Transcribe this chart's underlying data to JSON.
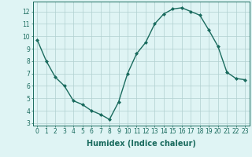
{
  "x": [
    0,
    1,
    2,
    3,
    4,
    5,
    6,
    7,
    8,
    9,
    10,
    11,
    12,
    13,
    14,
    15,
    16,
    17,
    18,
    19,
    20,
    21,
    22,
    23
  ],
  "y": [
    9.7,
    8.0,
    6.7,
    6.0,
    4.8,
    4.5,
    4.0,
    3.7,
    3.3,
    4.7,
    7.0,
    8.6,
    9.5,
    11.0,
    11.8,
    12.2,
    12.3,
    12.0,
    11.7,
    10.5,
    9.2,
    7.1,
    6.6,
    6.5
  ],
  "line_color": "#1a6b5e",
  "marker": "D",
  "marker_size": 2,
  "bg_color": "#dff4f4",
  "grid_color": "#b0d0d0",
  "xlabel": "Humidex (Indice chaleur)",
  "xlim": [
    -0.5,
    23.5
  ],
  "ylim": [
    2.8,
    12.8
  ],
  "yticks": [
    3,
    4,
    5,
    6,
    7,
    8,
    9,
    10,
    11,
    12
  ],
  "xticks": [
    0,
    1,
    2,
    3,
    4,
    5,
    6,
    7,
    8,
    9,
    10,
    11,
    12,
    13,
    14,
    15,
    16,
    17,
    18,
    19,
    20,
    21,
    22,
    23
  ],
  "tick_label_fontsize": 5.5,
  "xlabel_fontsize": 7,
  "line_width": 1.0
}
